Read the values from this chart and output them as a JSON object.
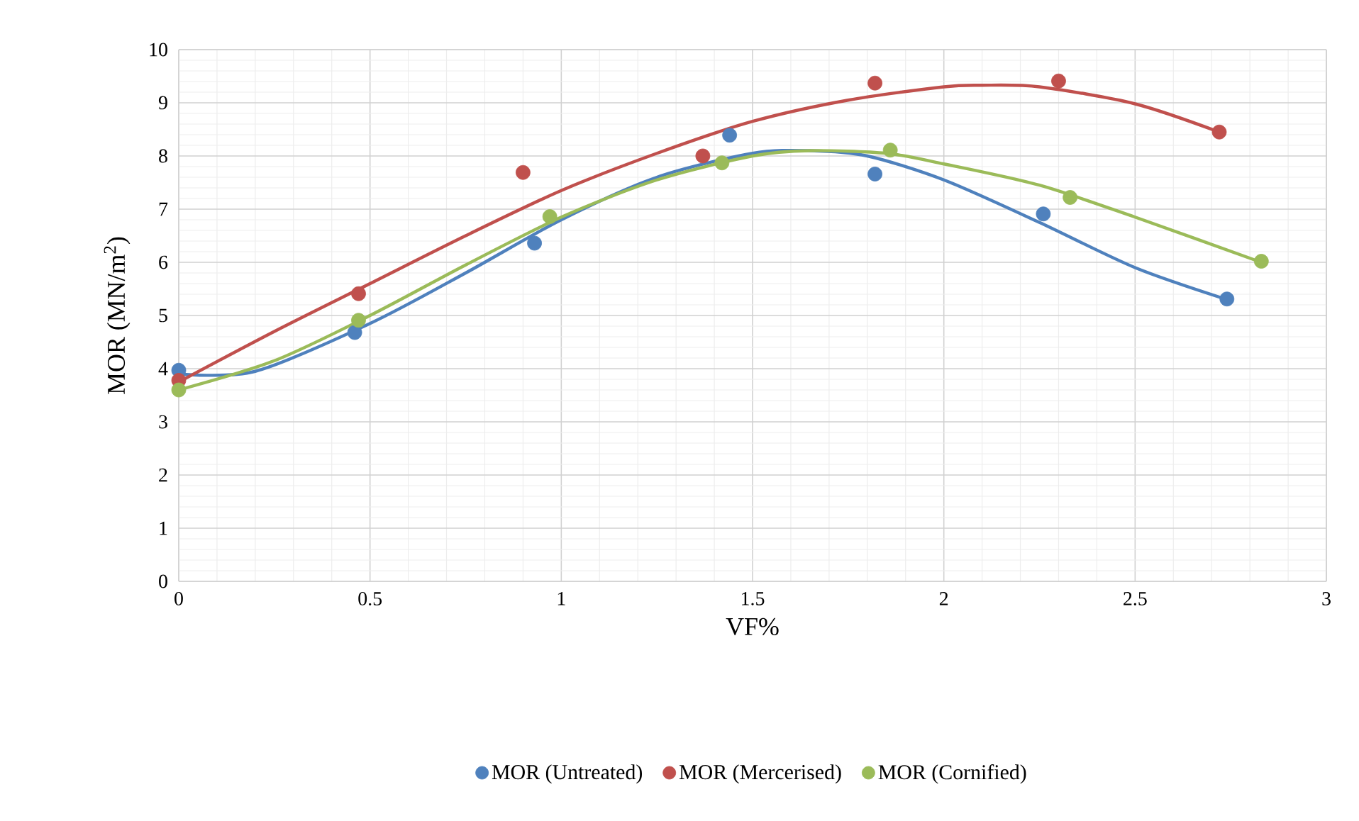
{
  "chart_data": {
    "type": "scatter",
    "xlabel": "VF%",
    "ylabel": "MOR (MN/m$^{2}$)",
    "xlim": [
      0,
      3
    ],
    "ylim": [
      0,
      10
    ],
    "xticks": [
      0,
      0.5,
      1,
      1.5,
      2,
      2.5,
      3
    ],
    "yticks": [
      0,
      1,
      2,
      3,
      4,
      5,
      6,
      7,
      8,
      9,
      10
    ],
    "grid": true,
    "legend": "bottom",
    "marker": "circle",
    "series": [
      {
        "name": "MOR (Untreated)",
        "color": "#4f81bd",
        "x": [
          0,
          0.46,
          0.93,
          1.44,
          1.82,
          2.26,
          2.74
        ],
        "values": [
          3.97,
          4.68,
          6.36,
          8.39,
          7.66,
          6.91,
          5.31
        ]
      },
      {
        "name": "MOR (Mercerised)",
        "color": "#c0504d",
        "x": [
          0,
          0.47,
          0.9,
          1.37,
          1.82,
          2.3,
          2.72
        ],
        "values": [
          3.78,
          5.41,
          7.69,
          8.0,
          9.37,
          9.41,
          8.45
        ]
      },
      {
        "name": "MOR (Cornified)",
        "color": "#9bbb59",
        "x": [
          0,
          0.47,
          0.97,
          1.42,
          1.86,
          2.33,
          2.83
        ],
        "values": [
          3.6,
          4.91,
          6.86,
          7.87,
          8.11,
          7.22,
          6.02
        ]
      },
      {
        "type": "line",
        "marker": "none",
        "color": "#4f81bd",
        "x": [
          0,
          0.2,
          0.5,
          0.75,
          1.0,
          1.25,
          1.5,
          1.65,
          1.8,
          2.0,
          2.25,
          2.5,
          2.74
        ],
        "values": [
          3.9,
          3.95,
          4.85,
          5.8,
          6.8,
          7.6,
          8.05,
          8.1,
          8.0,
          7.55,
          6.75,
          5.9,
          5.3
        ]
      },
      {
        "type": "line",
        "marker": "none",
        "color": "#c0504d",
        "x": [
          0,
          0.25,
          0.5,
          0.75,
          1.0,
          1.25,
          1.5,
          1.75,
          2.0,
          2.1,
          2.25,
          2.5,
          2.72
        ],
        "values": [
          3.75,
          4.7,
          5.6,
          6.5,
          7.35,
          8.05,
          8.65,
          9.05,
          9.3,
          9.33,
          9.3,
          8.98,
          8.45
        ]
      },
      {
        "type": "line",
        "marker": "none",
        "color": "#9bbb59",
        "x": [
          0,
          0.25,
          0.5,
          0.75,
          1.0,
          1.25,
          1.5,
          1.65,
          1.85,
          2.0,
          2.25,
          2.5,
          2.83
        ],
        "values": [
          3.6,
          4.15,
          5.0,
          5.95,
          6.85,
          7.55,
          8.0,
          8.1,
          8.05,
          7.85,
          7.45,
          6.85,
          6.0
        ]
      }
    ]
  }
}
